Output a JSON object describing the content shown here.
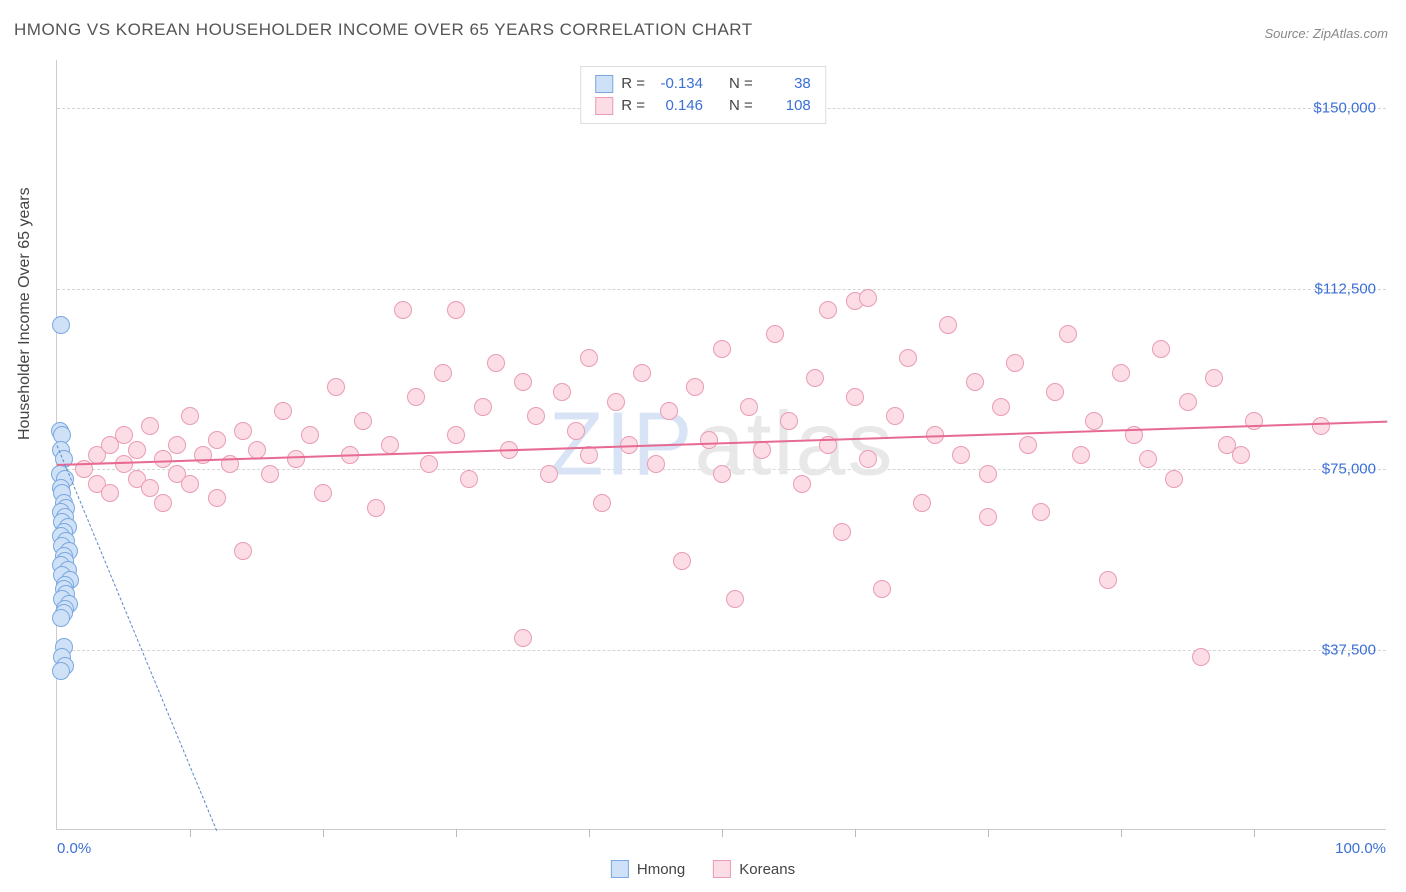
{
  "title": "HMONG VS KOREAN HOUSEHOLDER INCOME OVER 65 YEARS CORRELATION CHART",
  "source": "Source: ZipAtlas.com",
  "ylabel": "Householder Income Over 65 years",
  "watermark_pre": "ZIP",
  "watermark_post": "atlas",
  "chart": {
    "type": "scatter",
    "xlim": [
      0,
      100
    ],
    "ylim": [
      0,
      160000
    ],
    "yticks": [
      {
        "value": 37500,
        "label": "$37,500"
      },
      {
        "value": 75000,
        "label": "$75,000"
      },
      {
        "value": 112500,
        "label": "$112,500"
      },
      {
        "value": 150000,
        "label": "$150,000"
      }
    ],
    "xticks_minor": [
      10,
      20,
      30,
      40,
      50,
      60,
      70,
      80,
      90
    ],
    "xtick_labels": [
      {
        "value": 0,
        "label": "0.0%"
      },
      {
        "value": 100,
        "label": "100.0%"
      }
    ],
    "background_color": "#ffffff",
    "grid_color": "#d5d5d5",
    "axis_color": "#cccccc",
    "label_color": "#3b6fd6",
    "title_color": "#555555",
    "title_fontsize": 17,
    "label_fontsize": 15,
    "ylabel_fontsize": 16,
    "marker_radius": 9,
    "marker_stroke_width": 1
  },
  "series": {
    "hmong": {
      "label": "Hmong",
      "fill": "#cfe1f7",
      "stroke": "#7aa8e0",
      "R": "-0.134",
      "N": "38",
      "trend": {
        "x1": 0,
        "y1": 80000,
        "x2": 12,
        "y2": 0,
        "color": "#5a89c8",
        "dashed": true
      },
      "points": [
        [
          0.3,
          105000
        ],
        [
          0.2,
          83000
        ],
        [
          0.4,
          82000
        ],
        [
          0.3,
          79000
        ],
        [
          0.5,
          77000
        ],
        [
          0.2,
          74000
        ],
        [
          0.6,
          73000
        ],
        [
          0.3,
          71000
        ],
        [
          0.4,
          70000
        ],
        [
          0.5,
          68000
        ],
        [
          0.7,
          67000
        ],
        [
          0.3,
          66000
        ],
        [
          0.6,
          65000
        ],
        [
          0.4,
          64000
        ],
        [
          0.8,
          63000
        ],
        [
          0.5,
          62000
        ],
        [
          0.3,
          61000
        ],
        [
          0.7,
          60000
        ],
        [
          0.4,
          59000
        ],
        [
          0.9,
          58000
        ],
        [
          0.5,
          57000
        ],
        [
          0.6,
          56000
        ],
        [
          0.3,
          55000
        ],
        [
          0.8,
          54000
        ],
        [
          0.4,
          53000
        ],
        [
          1.0,
          52000
        ],
        [
          0.6,
          51000
        ],
        [
          0.5,
          50000
        ],
        [
          0.7,
          49000
        ],
        [
          0.4,
          48000
        ],
        [
          0.9,
          47000
        ],
        [
          0.6,
          46000
        ],
        [
          0.5,
          45000
        ],
        [
          0.3,
          44000
        ],
        [
          0.5,
          38000
        ],
        [
          0.4,
          36000
        ],
        [
          0.6,
          34000
        ],
        [
          0.3,
          33000
        ]
      ]
    },
    "koreans": {
      "label": "Koreans",
      "fill": "#fcdde5",
      "stroke": "#e99cb4",
      "R": "0.146",
      "N": "108",
      "trend": {
        "x1": 0,
        "y1": 76000,
        "x2": 100,
        "y2": 85000,
        "color": "#e76a93",
        "dashed": false
      },
      "points": [
        [
          2,
          75000
        ],
        [
          3,
          78000
        ],
        [
          3,
          72000
        ],
        [
          4,
          80000
        ],
        [
          4,
          70000
        ],
        [
          5,
          76000
        ],
        [
          5,
          82000
        ],
        [
          6,
          73000
        ],
        [
          6,
          79000
        ],
        [
          7,
          71000
        ],
        [
          7,
          84000
        ],
        [
          8,
          77000
        ],
        [
          8,
          68000
        ],
        [
          9,
          80000
        ],
        [
          9,
          74000
        ],
        [
          10,
          86000
        ],
        [
          10,
          72000
        ],
        [
          11,
          78000
        ],
        [
          12,
          81000
        ],
        [
          12,
          69000
        ],
        [
          13,
          76000
        ],
        [
          14,
          58000
        ],
        [
          14,
          83000
        ],
        [
          15,
          79000
        ],
        [
          16,
          74000
        ],
        [
          17,
          87000
        ],
        [
          18,
          77000
        ],
        [
          19,
          82000
        ],
        [
          20,
          70000
        ],
        [
          21,
          92000
        ],
        [
          22,
          78000
        ],
        [
          23,
          85000
        ],
        [
          24,
          67000
        ],
        [
          25,
          80000
        ],
        [
          26,
          108000
        ],
        [
          27,
          90000
        ],
        [
          28,
          76000
        ],
        [
          29,
          95000
        ],
        [
          30,
          82000
        ],
        [
          30,
          108000
        ],
        [
          31,
          73000
        ],
        [
          32,
          88000
        ],
        [
          33,
          97000
        ],
        [
          34,
          79000
        ],
        [
          35,
          93000
        ],
        [
          35,
          40000
        ],
        [
          36,
          86000
        ],
        [
          37,
          74000
        ],
        [
          38,
          91000
        ],
        [
          39,
          83000
        ],
        [
          40,
          98000
        ],
        [
          40,
          78000
        ],
        [
          41,
          68000
        ],
        [
          42,
          89000
        ],
        [
          43,
          80000
        ],
        [
          44,
          95000
        ],
        [
          45,
          76000
        ],
        [
          46,
          87000
        ],
        [
          47,
          56000
        ],
        [
          48,
          92000
        ],
        [
          49,
          81000
        ],
        [
          50,
          100000
        ],
        [
          50,
          74000
        ],
        [
          51,
          48000
        ],
        [
          52,
          88000
        ],
        [
          53,
          79000
        ],
        [
          54,
          103000
        ],
        [
          55,
          85000
        ],
        [
          56,
          72000
        ],
        [
          57,
          94000
        ],
        [
          58,
          80000
        ],
        [
          58,
          108000
        ],
        [
          59,
          62000
        ],
        [
          60,
          90000
        ],
        [
          61,
          77000
        ],
        [
          62,
          50000
        ],
        [
          63,
          86000
        ],
        [
          64,
          98000
        ],
        [
          65,
          68000
        ],
        [
          66,
          82000
        ],
        [
          67,
          105000
        ],
        [
          68,
          78000
        ],
        [
          69,
          93000
        ],
        [
          70,
          74000
        ],
        [
          70,
          65000
        ],
        [
          71,
          88000
        ],
        [
          72,
          97000
        ],
        [
          73,
          80000
        ],
        [
          74,
          66000
        ],
        [
          75,
          91000
        ],
        [
          76,
          103000
        ],
        [
          77,
          78000
        ],
        [
          78,
          85000
        ],
        [
          79,
          52000
        ],
        [
          80,
          95000
        ],
        [
          81,
          82000
        ],
        [
          82,
          77000
        ],
        [
          83,
          100000
        ],
        [
          84,
          73000
        ],
        [
          85,
          89000
        ],
        [
          86,
          36000
        ],
        [
          87,
          94000
        ],
        [
          88,
          80000
        ],
        [
          89,
          78000
        ],
        [
          90,
          85000
        ],
        [
          60,
          110000
        ],
        [
          61,
          110500
        ],
        [
          95,
          84000
        ]
      ]
    }
  },
  "legend_stats": {
    "r_label": "R =",
    "n_label": "N ="
  }
}
